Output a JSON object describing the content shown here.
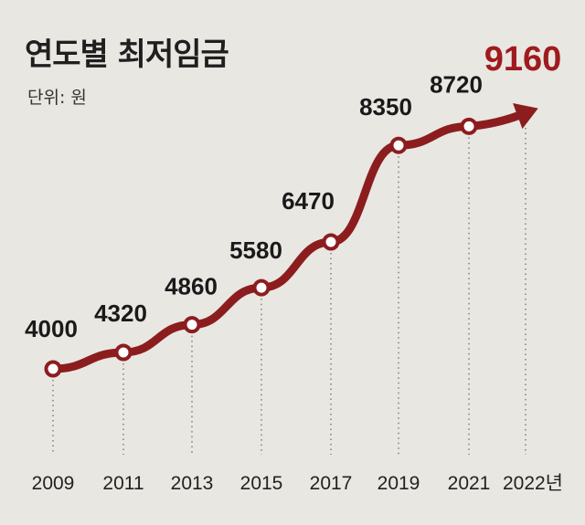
{
  "chart_data": {
    "type": "line",
    "title": "연도별 최저임금",
    "subtitle": "단위: 원",
    "x": [
      "2009",
      "2011",
      "2013",
      "2015",
      "2017",
      "2019",
      "2021",
      "2022년"
    ],
    "values": [
      4000,
      4320,
      4860,
      5580,
      6470,
      8350,
      8720,
      9160
    ],
    "value_labels": [
      "4000",
      "4320",
      "4860",
      "5580",
      "6470",
      "8350",
      "8720",
      "9160"
    ],
    "ylim": [
      3500,
      9500
    ],
    "grid": "vertical dotted lines",
    "legend": "none",
    "line_color": "#8c1d1f",
    "highlight_color": "#9e1b1e"
  }
}
